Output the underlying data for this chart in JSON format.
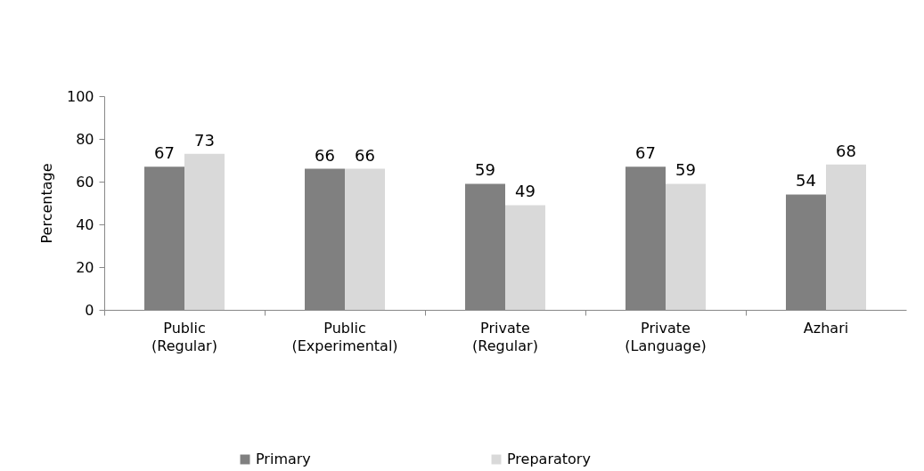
{
  "chart_data": {
    "type": "bar",
    "ylabel": "Percentage",
    "categories": [
      "Public (Regular)",
      "Public (Experimental)",
      "Private (Regular)",
      "Private (Language)",
      "Azhari"
    ],
    "series": [
      {
        "name": "Primary",
        "color": "#808080",
        "values": [
          67,
          66,
          59,
          67,
          54
        ]
      },
      {
        "name": "Preparatory",
        "color": "#d9d9d9",
        "values": [
          73,
          66,
          49,
          59,
          68
        ]
      }
    ],
    "ylim": [
      0,
      100
    ],
    "yticks": [
      0,
      20,
      40,
      60,
      80,
      100
    ],
    "grid": false,
    "legend": "bottom",
    "data_labels": true
  }
}
